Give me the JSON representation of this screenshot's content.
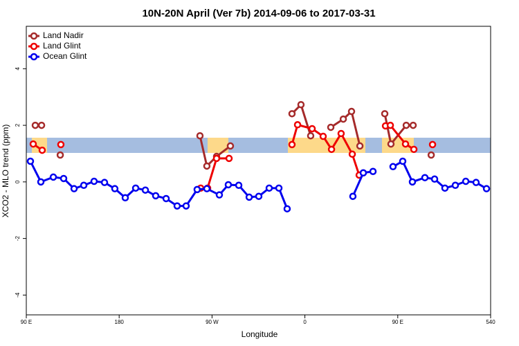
{
  "chart_data": {
    "type": "line",
    "title": "10N-20N April (Ver 7b)   2014-09-06 to 2017-03-31",
    "x_label": "Longitude",
    "y_label": "XCO2 - MLO trend (ppm)",
    "xlim": [
      90,
      540
    ],
    "xticks": [
      {
        "value": 90,
        "label": "90 E"
      },
      180,
      {
        "value": 270,
        "label": "90 W"
      },
      {
        "value": 360,
        "label": "0"
      },
      {
        "value": 450,
        "label": "90 E"
      },
      540
    ],
    "ylim": [
      -4.7,
      5.5
    ],
    "yticks": [
      -4,
      -2,
      0,
      2,
      4
    ],
    "legend": "upper left",
    "series": [
      {
        "name": "Land Nadir",
        "color": "#a52a2a",
        "x": [
          98.7,
          104.8,
          null,
          122.9,
          null,
          258.3,
          265,
          274.4,
          287.8,
          null,
          347.5,
          356.2,
          365.6,
          null,
          385.1,
          397.2,
          405.2,
          413.3,
          null,
          437.4,
          443.4,
          458.2,
          464.9,
          null,
          482.4
        ],
        "values": [
          2,
          2,
          null,
          0.95,
          null,
          1.63,
          0.56,
          0.9,
          1.27,
          null,
          2.41,
          2.73,
          1.63,
          null,
          1.93,
          2.22,
          2.49,
          1.27,
          null,
          2.41,
          1.34,
          2,
          2,
          null,
          0.95
        ]
      },
      {
        "name": "Land Glint",
        "color": "#ee0000",
        "x": [
          96.7,
          105.4,
          null,
          123.5,
          null,
          259,
          265.7,
          274.4,
          286.5,
          null,
          347.5,
          352.9,
          367,
          377.7,
          385.8,
          395.1,
          405.9,
          412.6,
          null,
          438.1,
          442.8,
          457.5,
          465.6,
          null,
          483.7
        ],
        "values": [
          1.34,
          1.12,
          null,
          1.32,
          null,
          -0.22,
          -0.22,
          0.83,
          0.83,
          null,
          1.32,
          2.02,
          1.88,
          1.61,
          1.15,
          1.71,
          0.98,
          0.24,
          null,
          1.98,
          2,
          1.34,
          1.15,
          null,
          1.32
        ]
      },
      {
        "name": "Ocean Glint",
        "color": "#0000ee",
        "x": [
          94,
          104.1,
          116.2,
          126.2,
          136.3,
          145.7,
          155.7,
          165.8,
          175.8,
          185.9,
          196,
          205.4,
          215.4,
          225.5,
          236.2,
          244.9,
          255.6,
          265,
          277.1,
          285.8,
          295.9,
          306,
          315.3,
          325.4,
          334.8,
          342.8,
          null,
          406.5,
          416.6,
          426,
          null,
          445.4,
          454.8,
          464.2,
          476.3,
          485.7,
          495.7,
          505.8,
          515.9,
          525.9,
          536
        ],
        "values": [
          0.73,
          0,
          0.17,
          0.12,
          -0.24,
          -0.12,
          0.02,
          -0.02,
          -0.24,
          -0.56,
          -0.22,
          -0.29,
          -0.49,
          -0.59,
          -0.85,
          -0.85,
          -0.27,
          -0.24,
          -0.46,
          -0.1,
          -0.12,
          -0.54,
          -0.51,
          -0.22,
          -0.22,
          -0.95,
          null,
          -0.51,
          0.32,
          0.37,
          null,
          0.54,
          0.73,
          0,
          0.15,
          0.1,
          -0.22,
          -0.12,
          0.02,
          -0.02,
          -0.24
        ]
      }
    ]
  }
}
